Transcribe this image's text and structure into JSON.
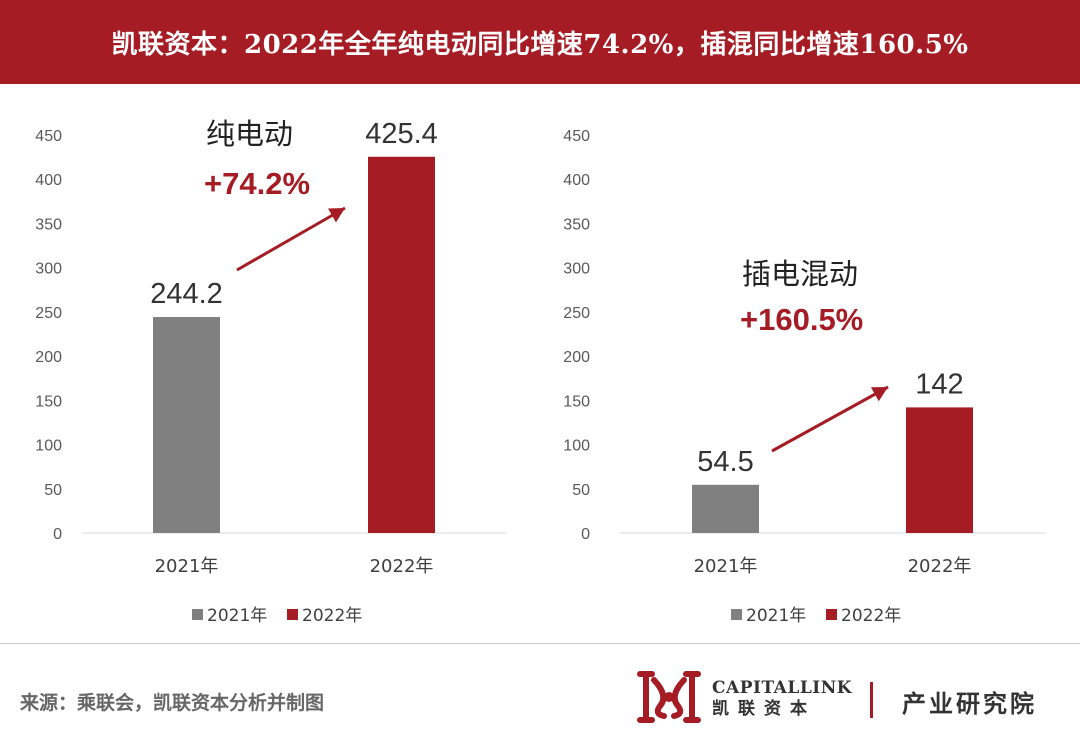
{
  "header": {
    "title": "凯联资本：2022年全年纯电动同比增速74.2%，插混同比增速160.5%"
  },
  "colors": {
    "banner": "#a51c24",
    "series_2021": "#808080",
    "series_2022": "#a51c24",
    "annotation_red": "#a51c24"
  },
  "chart_data": [
    {
      "type": "bar",
      "categories": [
        "2021年",
        "2022年"
      ],
      "values": [
        244.2,
        425.4
      ],
      "value_labels": [
        "244.2",
        "425.4"
      ],
      "series_names": [
        "2021年",
        "2022年"
      ],
      "ylim": [
        0,
        450
      ],
      "yticks": [
        "0",
        "50",
        "100",
        "150",
        "200",
        "250",
        "300",
        "350",
        "400",
        "450"
      ],
      "annotation": {
        "label": "纯电动",
        "growth": "+74.2%"
      },
      "legend_position": "bottom",
      "grid": false
    },
    {
      "type": "bar",
      "categories": [
        "2021年",
        "2022年"
      ],
      "values": [
        54.5,
        142
      ],
      "value_labels": [
        "54.5",
        "142"
      ],
      "series_names": [
        "2021年",
        "2022年"
      ],
      "ylim": [
        0,
        450
      ],
      "yticks": [
        "0",
        "50",
        "100",
        "150",
        "200",
        "250",
        "300",
        "350",
        "400",
        "450"
      ],
      "annotation": {
        "label": "插电混动",
        "growth": "+160.5%"
      },
      "legend_position": "bottom",
      "grid": false
    }
  ],
  "footer": {
    "source": "来源：乘联会，凯联资本分析并制图",
    "brand_en": "CAPITALLINK",
    "brand_cn": "凯联资本",
    "research": "产业研究院",
    "logo_icon": "capitallink-logo-icon"
  }
}
